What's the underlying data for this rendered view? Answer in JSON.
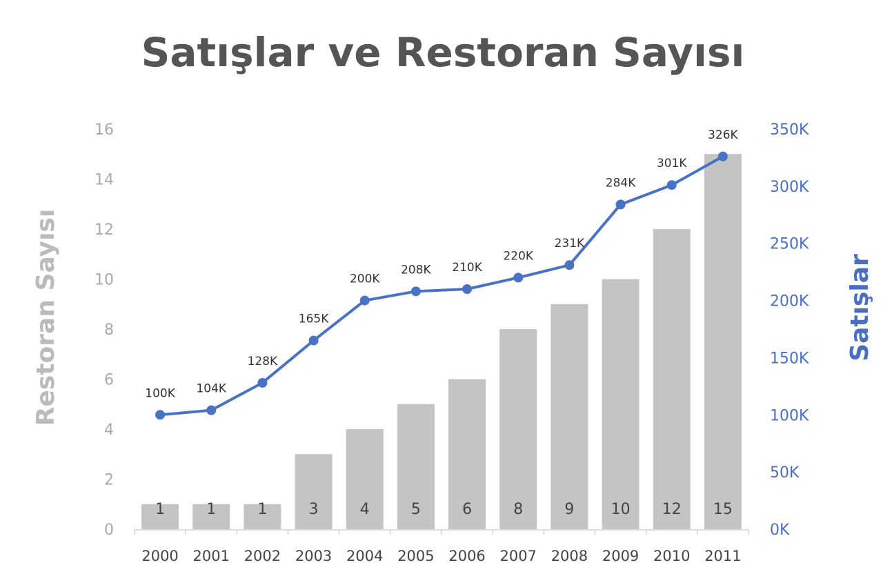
{
  "chart_data": {
    "type": "bar+line",
    "title": "Satışlar ve Restoran Sayısı",
    "categories": [
      "2000",
      "2001",
      "2002",
      "2003",
      "2004",
      "2005",
      "2006",
      "2007",
      "2008",
      "2009",
      "2010",
      "2011"
    ],
    "series": [
      {
        "name": "Restoran Sayısı",
        "type": "bar",
        "axis": "left",
        "color": "#c4c4c4",
        "values": [
          1,
          1,
          1,
          3,
          4,
          5,
          6,
          8,
          9,
          10,
          12,
          15
        ],
        "labels": [
          "1",
          "1",
          "1",
          "3",
          "4",
          "5",
          "6",
          "8",
          "9",
          "10",
          "12",
          "15"
        ]
      },
      {
        "name": "Satışlar",
        "type": "line",
        "axis": "right",
        "color": "#4a72c4",
        "values": [
          100,
          104,
          128,
          165,
          200,
          208,
          210,
          220,
          231,
          284,
          301,
          326
        ],
        "labels": [
          "100K",
          "104K",
          "128K",
          "165K",
          "200K",
          "208K",
          "210K",
          "220K",
          "231K",
          "284K",
          "301K",
          "326K"
        ]
      }
    ],
    "ylabel": "Restoran Sayısı",
    "y2label": "Satışlar",
    "ylim": [
      0,
      16
    ],
    "y2lim": [
      0,
      350
    ],
    "yticks": [
      "0",
      "2",
      "4",
      "6",
      "8",
      "10",
      "12",
      "14",
      "16"
    ],
    "y2ticks": [
      "0K",
      "50K",
      "100K",
      "150K",
      "200K",
      "250K",
      "300K",
      "350K"
    ],
    "grid": false,
    "legend": "none"
  }
}
